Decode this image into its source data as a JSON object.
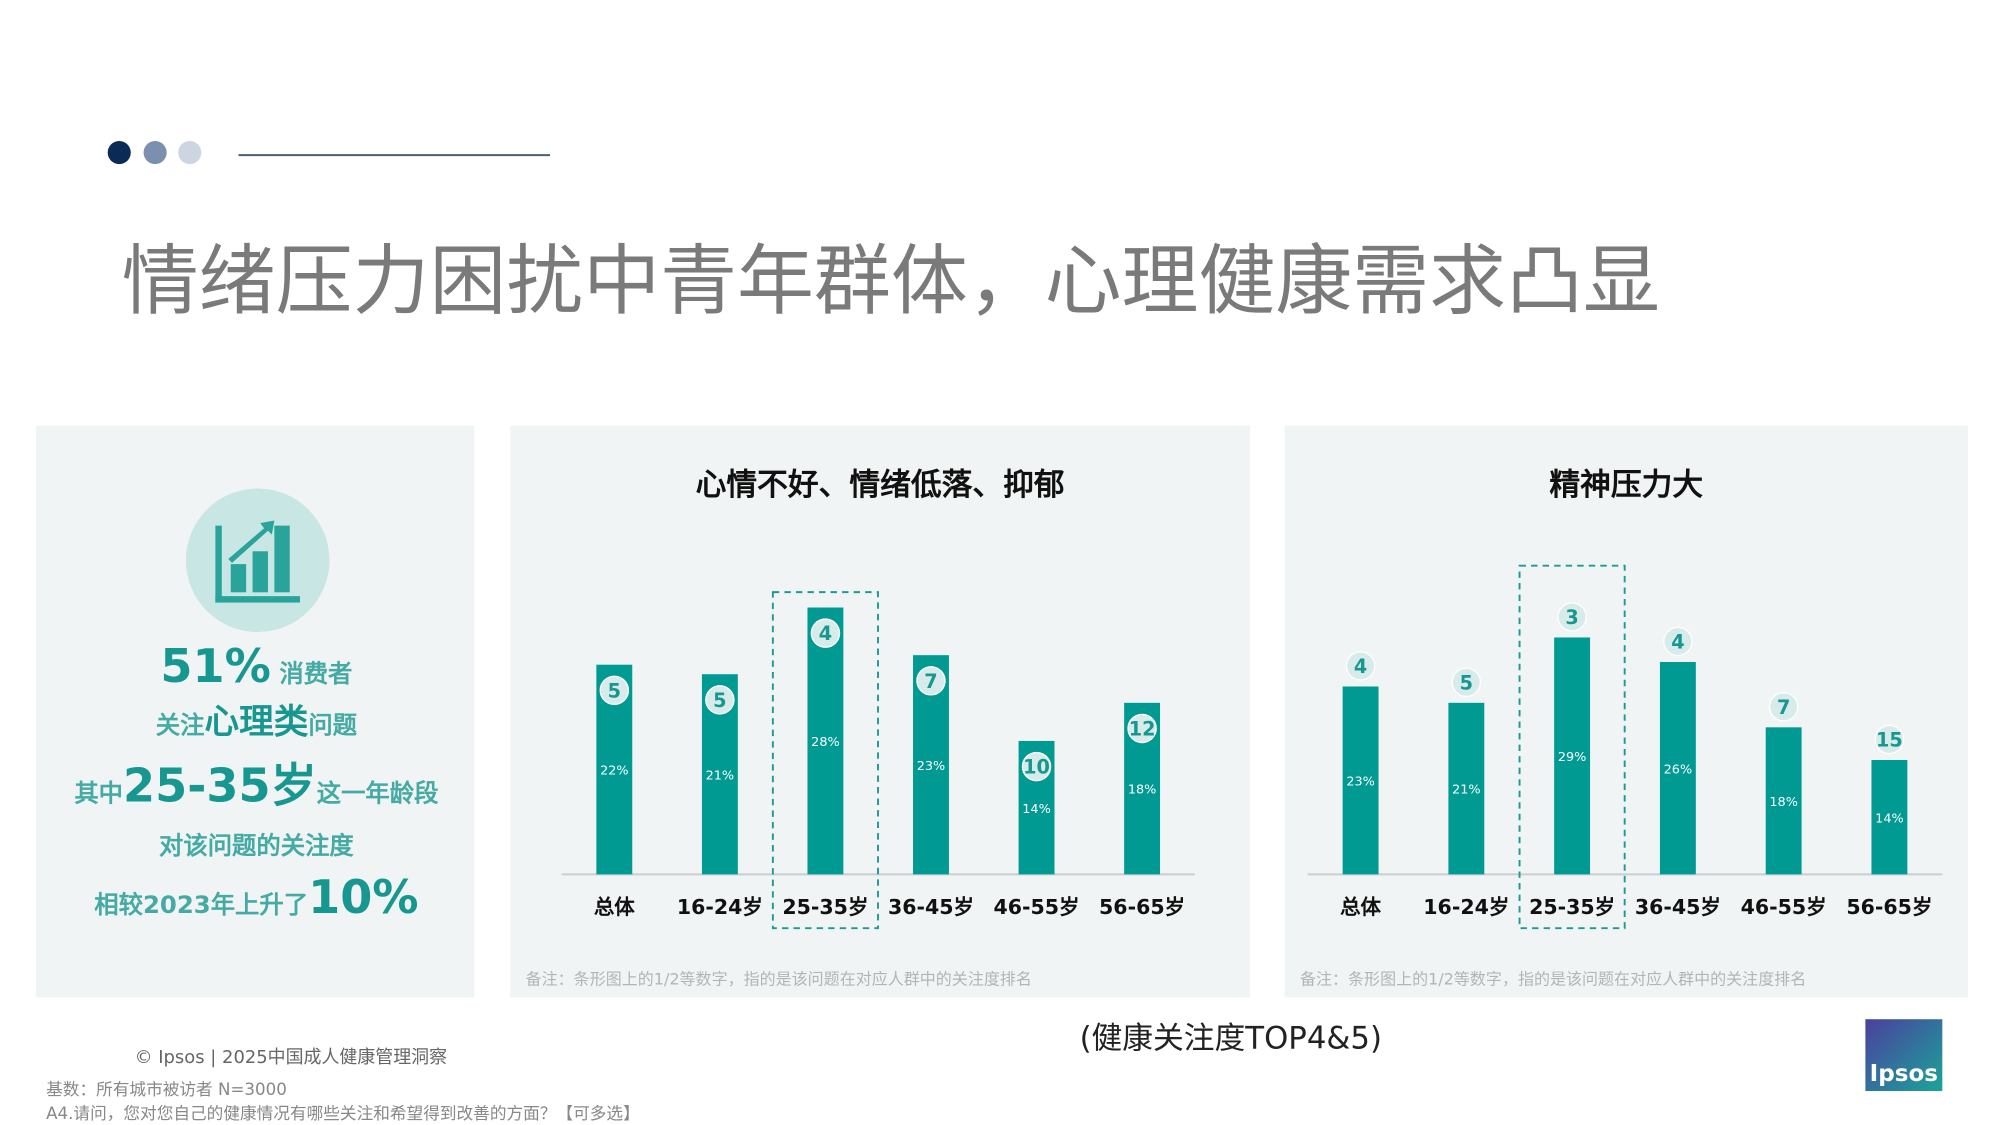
{
  "title": "情绪压力困扰中青年群体，心理健康需求凸显",
  "callout": [
    [
      "51%",
      " 消费者"
    ],
    [
      "关注",
      "心理类",
      "问题"
    ],
    [
      "其中",
      "25-35岁",
      "这一年龄段"
    ],
    [
      "对该问题的关注度"
    ],
    [
      "相较2023年上升了",
      "10%"
    ]
  ],
  "chart_data": [
    {
      "type": "bar",
      "title": "心情不好、情绪低落、抑郁",
      "categories": [
        "总体",
        "16-24岁",
        "25-35岁",
        "36-45岁",
        "46-55岁",
        "56-65岁"
      ],
      "values": [
        22,
        21,
        28,
        23,
        14,
        18
      ],
      "value_labels": [
        "22%",
        "21%",
        "28%",
        "23%",
        "14%",
        "18%"
      ],
      "ranks": [
        5,
        5,
        4,
        7,
        10,
        12
      ],
      "rank_position": "inside",
      "color": "#009a93",
      "ylim": [
        0,
        30
      ],
      "highlight": 2,
      "note": "备注：条形图上的1/2等数字，指的是该问题在对应人群中的关注度排名"
    },
    {
      "type": "bar",
      "title": "精神压力大",
      "categories": [
        "总体",
        "16-24岁",
        "25-35岁",
        "36-45岁",
        "46-55岁",
        "56-65岁"
      ],
      "values": [
        23,
        21,
        29,
        26,
        18,
        14
      ],
      "value_labels": [
        "23%",
        "21%",
        "29%",
        "26%",
        "18%",
        "14%"
      ],
      "ranks": [
        4,
        5,
        3,
        4,
        7,
        15
      ],
      "rank_position": "above",
      "color": "#009a93",
      "ylim": [
        0,
        35
      ],
      "highlight": 2,
      "note": "备注：条形图上的1/2等数字，指的是该问题在对应人群中的关注度排名"
    }
  ],
  "caption": "(健康关注度TOP4&5)",
  "copyright": "© Ipsos | 2025中国成人健康管理洞察",
  "base": "基数：所有城市被访者  N=3000",
  "question": "A4.请问，您对您自己的健康情况有哪些关注和希望得到改善的方面？【可多选】",
  "logo": "Ipsos"
}
